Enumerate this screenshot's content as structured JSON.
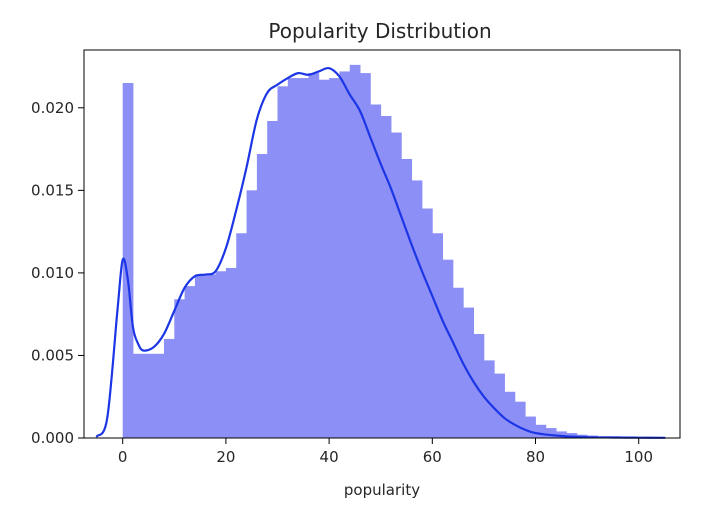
{
  "chart_data": {
    "type": "bar",
    "title": "Popularity Distribution",
    "xlabel": "popularity",
    "ylabel": "",
    "xlim": [
      -7.5,
      108
    ],
    "ylim": [
      0,
      0.0235
    ],
    "xticks": [
      0,
      20,
      40,
      60,
      80,
      100
    ],
    "xtick_labels": [
      "0",
      "20",
      "40",
      "60",
      "80",
      "100"
    ],
    "yticks": [
      0.0,
      0.005,
      0.01,
      0.015,
      0.02
    ],
    "ytick_labels": [
      "0.000",
      "0.005",
      "0.010",
      "0.015",
      "0.020"
    ],
    "bin_width": 2,
    "bins_start": 0,
    "values": [
      0.0215,
      0.0051,
      0.0051,
      0.0051,
      0.006,
      0.0084,
      0.0092,
      0.0099,
      0.0099,
      0.0101,
      0.0103,
      0.0124,
      0.015,
      0.0172,
      0.0192,
      0.0213,
      0.0218,
      0.0218,
      0.0221,
      0.0217,
      0.0218,
      0.0222,
      0.0226,
      0.0221,
      0.0202,
      0.0195,
      0.0185,
      0.0169,
      0.0156,
      0.0139,
      0.0124,
      0.0108,
      0.0091,
      0.0079,
      0.0063,
      0.0047,
      0.0039,
      0.0028,
      0.0022,
      0.0013,
      0.0008,
      0.0006,
      0.0004,
      0.0003,
      0.0002,
      0.00015,
      0.0001,
      0.0001,
      5e-05,
      3e-05,
      2e-05
    ],
    "kde": {
      "x": [
        -5,
        -3,
        -1,
        0,
        1,
        2,
        3,
        4,
        6,
        8,
        10,
        12,
        14,
        16,
        18,
        20,
        22,
        24,
        26,
        28,
        30,
        32,
        34,
        36,
        38,
        40,
        42,
        44,
        46,
        48,
        50,
        52,
        54,
        56,
        58,
        60,
        62,
        64,
        66,
        68,
        70,
        72,
        74,
        76,
        78,
        80,
        85,
        90,
        95,
        100,
        105
      ],
      "y": [
        0.0001,
        0.0012,
        0.0078,
        0.0108,
        0.0096,
        0.0067,
        0.0057,
        0.0053,
        0.0055,
        0.0063,
        0.0077,
        0.0091,
        0.0098,
        0.0099,
        0.0101,
        0.0115,
        0.0138,
        0.0164,
        0.0193,
        0.0209,
        0.0214,
        0.0218,
        0.0221,
        0.022,
        0.0222,
        0.0224,
        0.0219,
        0.0208,
        0.0198,
        0.0182,
        0.0166,
        0.0151,
        0.0134,
        0.0117,
        0.0101,
        0.0086,
        0.0071,
        0.0058,
        0.0045,
        0.0034,
        0.0025,
        0.0018,
        0.0012,
        0.0008,
        0.0005,
        0.0003,
        0.00012,
        5e-05,
        3e-05,
        2e-05,
        1e-05
      ]
    },
    "bar_color": "#8c8ff5",
    "line_color": "#1c36e6",
    "grid": false,
    "legend": "none"
  }
}
